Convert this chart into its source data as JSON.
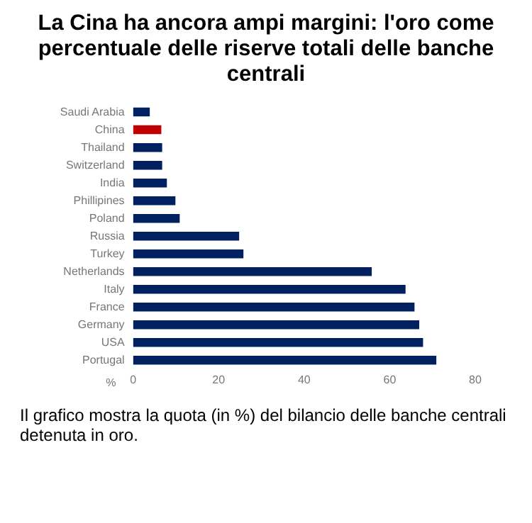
{
  "chart_data": {
    "type": "bar",
    "orientation": "horizontal",
    "title": "La Cina ha ancora ampi margini: l'oro come percentuale delle riserve totali delle banche centrali",
    "categories": [
      "Saudi Arabia",
      "China",
      "Thailand",
      "Switzerland",
      "India",
      "Phillipines",
      "Poland",
      "Russia",
      "Turkey",
      "Netherlands",
      "Italy",
      "France",
      "Germany",
      "USA",
      "Portugal"
    ],
    "values": [
      3.9,
      6.6,
      6.8,
      6.8,
      7.9,
      9.9,
      10.9,
      24.8,
      25.8,
      55.8,
      63.7,
      65.8,
      66.9,
      67.8,
      70.9
    ],
    "colors": [
      "#002060",
      "#c00000",
      "#002060",
      "#002060",
      "#002060",
      "#002060",
      "#002060",
      "#002060",
      "#002060",
      "#002060",
      "#002060",
      "#002060",
      "#002060",
      "#002060",
      "#002060"
    ],
    "xlabel": "%",
    "xlim": [
      0,
      80
    ],
    "xticks": [
      0,
      20,
      40,
      60,
      80
    ],
    "grid": false,
    "legend": false,
    "annotations": [
      "Il grafico mostra la quota (in %) del bilancio delle banche centrali detenuta in oro."
    ]
  }
}
